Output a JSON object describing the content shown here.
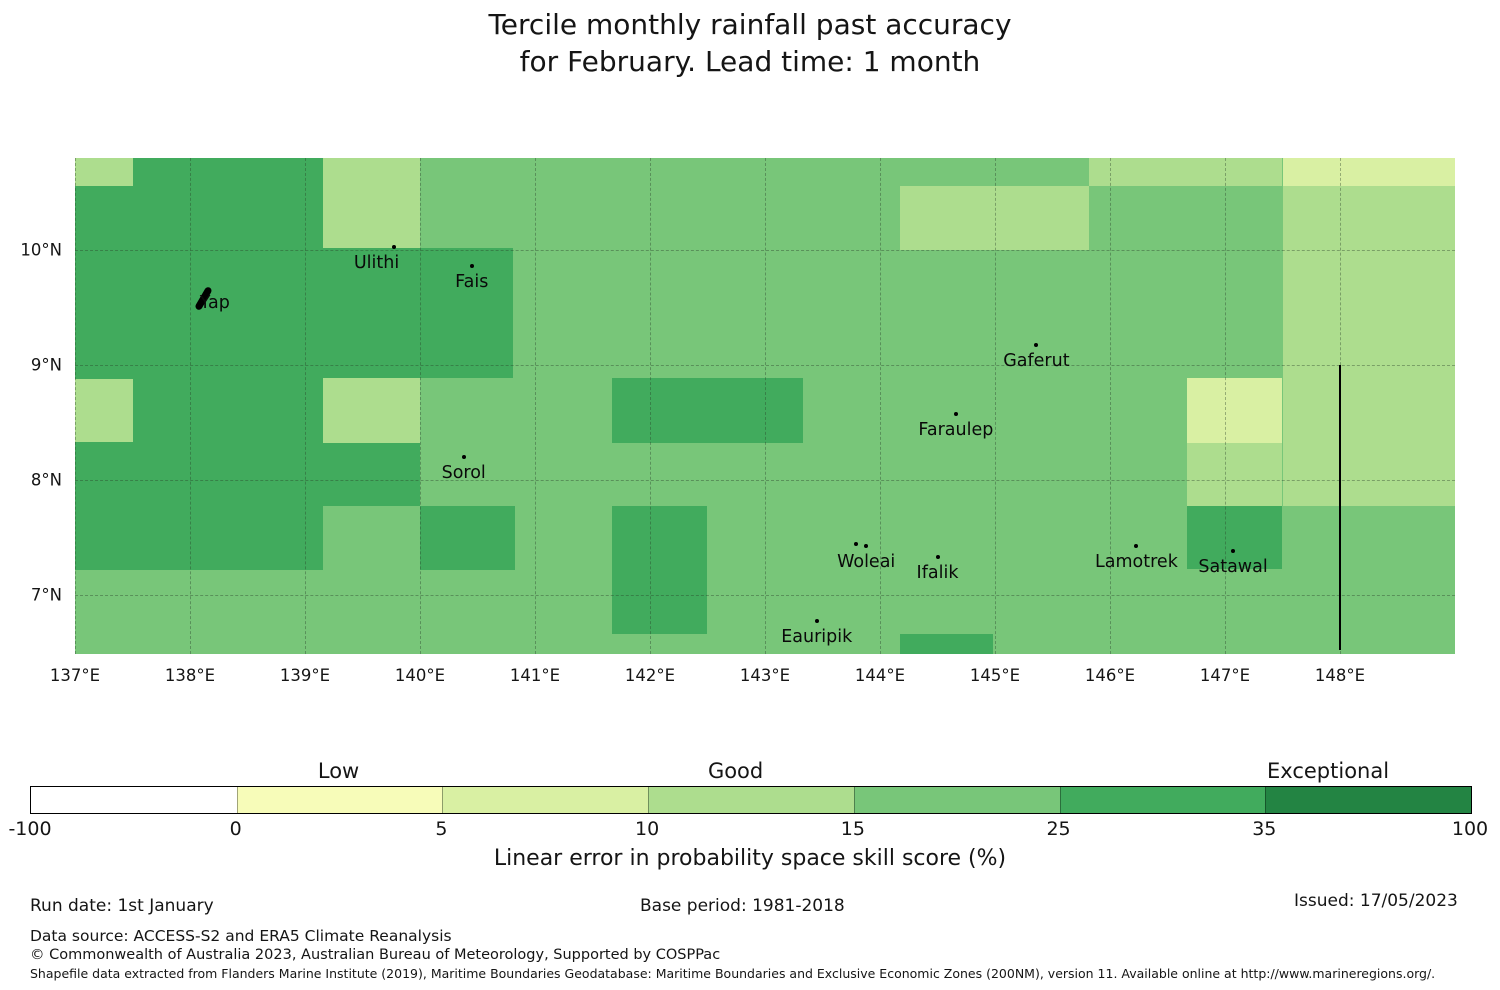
{
  "title": {
    "line1": "Tercile monthly rainfall past accuracy",
    "line2": "for February. Lead time: 1 month"
  },
  "chart_data": {
    "type": "heatmap",
    "subtype": "geographic tercile skill map",
    "extent": {
      "lon_min": 137.0,
      "lon_max": 149.0,
      "lat_min": 6.49,
      "lat_max": 10.8
    },
    "grid": {
      "lons": [
        137,
        138,
        139,
        140,
        141,
        142,
        143,
        144,
        145,
        146,
        147,
        148
      ],
      "lats": [
        7,
        8,
        9,
        10
      ]
    },
    "x_ticks": [
      {
        "label": "137°E",
        "lon": 137
      },
      {
        "label": "138°E",
        "lon": 138
      },
      {
        "label": "139°E",
        "lon": 139
      },
      {
        "label": "140°E",
        "lon": 140
      },
      {
        "label": "141°E",
        "lon": 141
      },
      {
        "label": "142°E",
        "lon": 142
      },
      {
        "label": "143°E",
        "lon": 143
      },
      {
        "label": "144°E",
        "lon": 144
      },
      {
        "label": "145°E",
        "lon": 145
      },
      {
        "label": "146°E",
        "lon": 146
      },
      {
        "label": "147°E",
        "lon": 147
      },
      {
        "label": "148°E",
        "lon": 148
      }
    ],
    "y_ticks": [
      {
        "label": "10°N",
        "lat": 10
      },
      {
        "label": "9°N",
        "lat": 9
      },
      {
        "label": "8°N",
        "lat": 8
      },
      {
        "label": "7°N",
        "lat": 7
      }
    ],
    "levels": {
      "-100-0": "#ffffff",
      "0-5": "#f7fcb9",
      "5-10": "#d9f0a3",
      "10-15": "#addd8e",
      "15-25": "#78c679",
      "25-35": "#41ab5d",
      "35-100": "#238443"
    },
    "base_skill": "15-25",
    "cells": [
      {
        "lon": [
          137.0,
          137.5
        ],
        "lat": [
          10.56,
          10.8
        ],
        "skill": "10-15"
      },
      {
        "lon": [
          139.16,
          140.0
        ],
        "lat": [
          10.0,
          10.8
        ],
        "skill": "10-15"
      },
      {
        "lon": [
          145.82,
          147.5
        ],
        "lat": [
          10.56,
          10.8
        ],
        "skill": "10-15"
      },
      {
        "lon": [
          144.17,
          145.82
        ],
        "lat": [
          10.0,
          10.56
        ],
        "skill": "10-15"
      },
      {
        "lon": [
          147.5,
          149.0
        ],
        "lat": [
          7.77,
          10.56
        ],
        "skill": "10-15"
      },
      {
        "lon": [
          137.0,
          137.5
        ],
        "lat": [
          8.33,
          8.88
        ],
        "skill": "10-15"
      },
      {
        "lon": [
          139.16,
          140.0
        ],
        "lat": [
          8.32,
          8.89
        ],
        "skill": "10-15"
      },
      {
        "lon": [
          146.67,
          147.5
        ],
        "lat": [
          7.77,
          8.32
        ],
        "skill": "10-15"
      },
      {
        "lon": [
          147.5,
          149.0
        ],
        "lat": [
          10.56,
          10.8
        ],
        "skill": "5-10"
      },
      {
        "lon": [
          146.67,
          147.5
        ],
        "lat": [
          8.32,
          8.89
        ],
        "skill": "5-10"
      },
      {
        "lon": [
          137.5,
          139.16
        ],
        "lat": [
          7.22,
          10.8
        ],
        "skill": "25-35"
      },
      {
        "lon": [
          137.0,
          137.5
        ],
        "lat": [
          8.88,
          10.56
        ],
        "skill": "25-35"
      },
      {
        "lon": [
          137.0,
          137.5
        ],
        "lat": [
          7.22,
          8.33
        ],
        "skill": "25-35"
      },
      {
        "lon": [
          139.16,
          140.81
        ],
        "lat": [
          8.89,
          10.02
        ],
        "skill": "25-35"
      },
      {
        "lon": [
          139.16,
          140.0
        ],
        "lat": [
          7.77,
          8.32
        ],
        "skill": "25-35"
      },
      {
        "lon": [
          140.0,
          140.83
        ],
        "lat": [
          7.22,
          7.77
        ],
        "skill": "25-35"
      },
      {
        "lon": [
          141.67,
          143.33
        ],
        "lat": [
          8.32,
          8.89
        ],
        "skill": "25-35"
      },
      {
        "lon": [
          141.67,
          142.5
        ],
        "lat": [
          6.66,
          7.77
        ],
        "skill": "25-35"
      },
      {
        "lon": [
          146.67,
          147.5
        ],
        "lat": [
          7.23,
          7.77
        ],
        "skill": "25-35"
      },
      {
        "lon": [
          144.17,
          144.98
        ],
        "lat": [
          6.49,
          6.66
        ],
        "skill": "25-35"
      }
    ],
    "islands": [
      {
        "name": "Yap",
        "lon": 138.12,
        "lat": 9.57,
        "marker": "blob",
        "dx": 11,
        "dy": -12
      },
      {
        "name": "Ulithi",
        "lon": 139.77,
        "lat": 10.03,
        "dx": -17
      },
      {
        "name": "Fais",
        "lon": 140.45,
        "lat": 9.86
      },
      {
        "name": "Sorol",
        "lon": 140.38,
        "lat": 8.2
      },
      {
        "name": "Gaferut",
        "lon": 145.36,
        "lat": 9.17
      },
      {
        "name": "Faraulep",
        "lon": 144.66,
        "lat": 8.57
      },
      {
        "name": "Woleai",
        "lon": 143.88,
        "lat": 7.43,
        "extra_dots": [
          [
            143.79,
            7.44
          ]
        ]
      },
      {
        "name": "Ifalik",
        "lon": 144.5,
        "lat": 7.33
      },
      {
        "name": "Eauripik",
        "lon": 143.45,
        "lat": 6.77
      },
      {
        "name": "Lamotrek",
        "lon": 146.23,
        "lat": 7.43
      },
      {
        "name": "Satawal",
        "lon": 147.07,
        "lat": 7.38
      }
    ],
    "eez_line": {
      "lon": 148.0,
      "lat_from": 9.0,
      "lat_to": 6.52
    },
    "colorbar": {
      "ticks": [
        "-100",
        "0",
        "5",
        "10",
        "15",
        "25",
        "35",
        "100"
      ],
      "segment_colors": [
        "#ffffff",
        "#f7fcb9",
        "#d9f0a3",
        "#addd8e",
        "#78c679",
        "#41ab5d",
        "#238443"
      ],
      "quality_labels": [
        {
          "text": "Low",
          "tick_pos": 1.5
        },
        {
          "text": "Good",
          "tick_pos": 3.43
        },
        {
          "text": "Exceptional",
          "tick_pos": 6.31
        }
      ],
      "axis_label": "Linear error in probability space skill score (%)"
    }
  },
  "footer": {
    "run_date": "Run date: 1st January",
    "base_period": "Base period: 1981-2018",
    "issued": "Issued: 17/05/2023",
    "data_source": "Data source: ACCESS-S2 and ERA5 Climate Reanalysis",
    "copyright": "© Commonwealth of Australia 2023, Australian Bureau of Meteorology, Supported by COSPPac",
    "shapefile_note": "Shapefile data extracted from Flanders Marine Institute (2019), Maritime Boundaries Geodatabase: Maritime Boundaries and Exclusive Economic Zones (200NM), version 11. Available online at http://www.marineregions.org/."
  }
}
